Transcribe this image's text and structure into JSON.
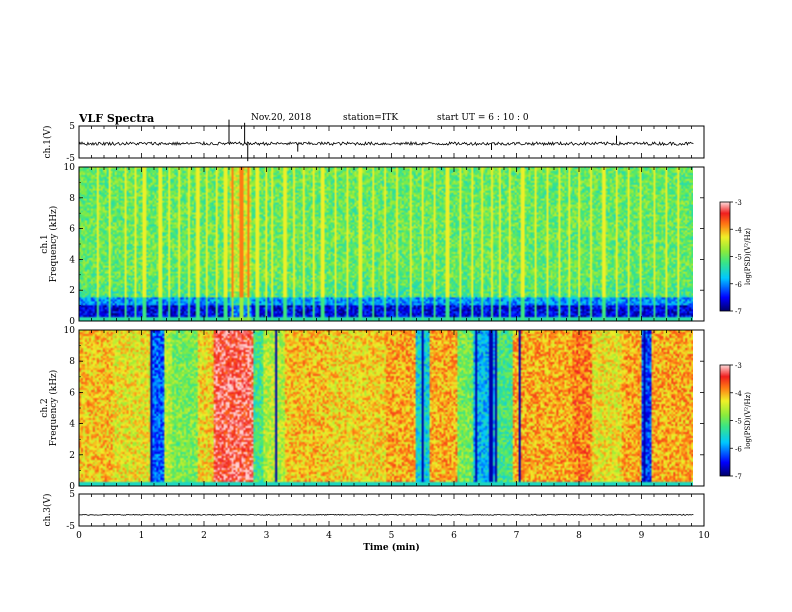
{
  "header": {
    "title": "VLF Spectra",
    "date": "Nov.20, 2018",
    "station": "station=ITK",
    "start_ut": "start  UT  =  6  : 10 : 0"
  },
  "chart_data": [
    {
      "type": "line",
      "panel": "ch1-waveform",
      "ylabel": "ch.1(V)",
      "yticks": [
        "5",
        "-5"
      ],
      "ylim": [
        -5,
        5
      ],
      "x_range": [
        0,
        9.83
      ],
      "baseline": -0.5,
      "noise_amplitude": 0.5,
      "spikes": [
        {
          "x": 2.4,
          "y": 7
        },
        {
          "x": 2.65,
          "y": 6
        },
        {
          "x": 2.7,
          "y": -6
        },
        {
          "x": 3.5,
          "y": -3
        },
        {
          "x": 6.6,
          "y": -2.5
        },
        {
          "x": 8.6,
          "y": 2
        }
      ]
    },
    {
      "type": "heatmap",
      "panel": "ch1-spectrogram",
      "ylabel": "ch.1",
      "ylabel2": "Frequency (kHz)",
      "yticks": [
        "0",
        "2",
        "4",
        "6",
        "8",
        "10"
      ],
      "ylim": [
        0,
        10
      ],
      "x_range": [
        0,
        9.83
      ],
      "colorbar": {
        "label": "log(PSD)(V²/Hz)",
        "ticks": [
          "-3",
          "-4",
          "-5",
          "-6",
          "-7"
        ],
        "range": [
          -7,
          -3
        ]
      },
      "background_level": -5.0,
      "low_band_level": -6.6,
      "low_band_khz": [
        0.2,
        1.6
      ],
      "sferic_times": [
        0.3,
        0.5,
        0.75,
        0.9,
        1.05,
        1.3,
        1.45,
        1.6,
        1.75,
        1.9,
        2.05,
        2.2,
        2.35,
        2.45,
        2.6,
        2.7,
        2.85,
        3.0,
        3.1,
        3.3,
        3.45,
        3.6,
        3.75,
        3.9,
        4.1,
        4.3,
        4.5,
        4.7,
        4.9,
        5.1,
        5.3,
        5.5,
        5.7,
        5.9,
        6.1,
        6.3,
        6.45,
        6.6,
        6.75,
        6.9,
        7.1,
        7.3,
        7.5,
        7.7,
        7.85,
        8.0,
        8.2,
        8.4,
        8.6,
        8.8,
        9.0,
        9.2,
        9.4,
        9.6
      ]
    },
    {
      "type": "heatmap",
      "panel": "ch2-spectrogram",
      "ylabel": "ch.2",
      "ylabel2": "Frequency (kHz)",
      "yticks": [
        "0",
        "2",
        "4",
        "6",
        "8",
        "10"
      ],
      "ylim": [
        0,
        10
      ],
      "x_range": [
        0,
        9.83
      ],
      "colorbar": {
        "label": "log(PSD)(V²/Hz)",
        "ticks": [
          "-3",
          "-4",
          "-5",
          "-6",
          "-7"
        ],
        "range": [
          -7,
          -3
        ]
      },
      "level_segments": [
        {
          "t0": 0.0,
          "t1": 0.55,
          "level": -4.1
        },
        {
          "t0": 0.55,
          "t1": 1.15,
          "level": -4.3
        },
        {
          "t0": 1.15,
          "t1": 1.35,
          "level": -6.2
        },
        {
          "t0": 1.35,
          "t1": 1.5,
          "level": -4.6
        },
        {
          "t0": 1.5,
          "t1": 1.9,
          "level": -4.9
        },
        {
          "t0": 1.9,
          "t1": 2.15,
          "level": -4.2
        },
        {
          "t0": 2.15,
          "t1": 2.8,
          "level": -3.3
        },
        {
          "t0": 2.8,
          "t1": 2.95,
          "level": -5.2
        },
        {
          "t0": 2.95,
          "t1": 3.3,
          "level": -4.6
        },
        {
          "t0": 3.3,
          "t1": 4.0,
          "level": -4.1
        },
        {
          "t0": 4.0,
          "t1": 4.9,
          "level": -4.2
        },
        {
          "t0": 4.9,
          "t1": 5.4,
          "level": -4.0
        },
        {
          "t0": 5.4,
          "t1": 5.6,
          "level": -5.6
        },
        {
          "t0": 5.6,
          "t1": 6.05,
          "level": -4.0
        },
        {
          "t0": 6.05,
          "t1": 6.3,
          "level": -4.9
        },
        {
          "t0": 6.3,
          "t1": 6.7,
          "level": -5.8
        },
        {
          "t0": 6.7,
          "t1": 6.95,
          "level": -5.2
        },
        {
          "t0": 6.95,
          "t1": 7.9,
          "level": -4.0
        },
        {
          "t0": 7.9,
          "t1": 8.2,
          "level": -3.8
        },
        {
          "t0": 8.2,
          "t1": 8.7,
          "level": -4.3
        },
        {
          "t0": 8.7,
          "t1": 9.0,
          "level": -4.0
        },
        {
          "t0": 9.0,
          "t1": 9.15,
          "level": -6.3
        },
        {
          "t0": 9.15,
          "t1": 9.83,
          "level": -4.0
        }
      ],
      "dark_lines": [
        1.17,
        1.3,
        3.15,
        5.5,
        6.35,
        6.5,
        6.58,
        6.62,
        6.68,
        7.05,
        9.05
      ]
    },
    {
      "type": "line",
      "panel": "ch3-waveform",
      "ylabel": "ch.3(V)",
      "yticks": [
        "5",
        "-5"
      ],
      "ylim": [
        -5,
        5
      ],
      "x_range": [
        0,
        9.83
      ],
      "baseline": -1.5,
      "noise_amplitude": 0.15,
      "xlabel": "Time (min)",
      "xticks": [
        "0",
        "1",
        "2",
        "3",
        "4",
        "5",
        "6",
        "7",
        "8",
        "9",
        "10"
      ],
      "xlim": [
        0,
        10
      ]
    }
  ]
}
